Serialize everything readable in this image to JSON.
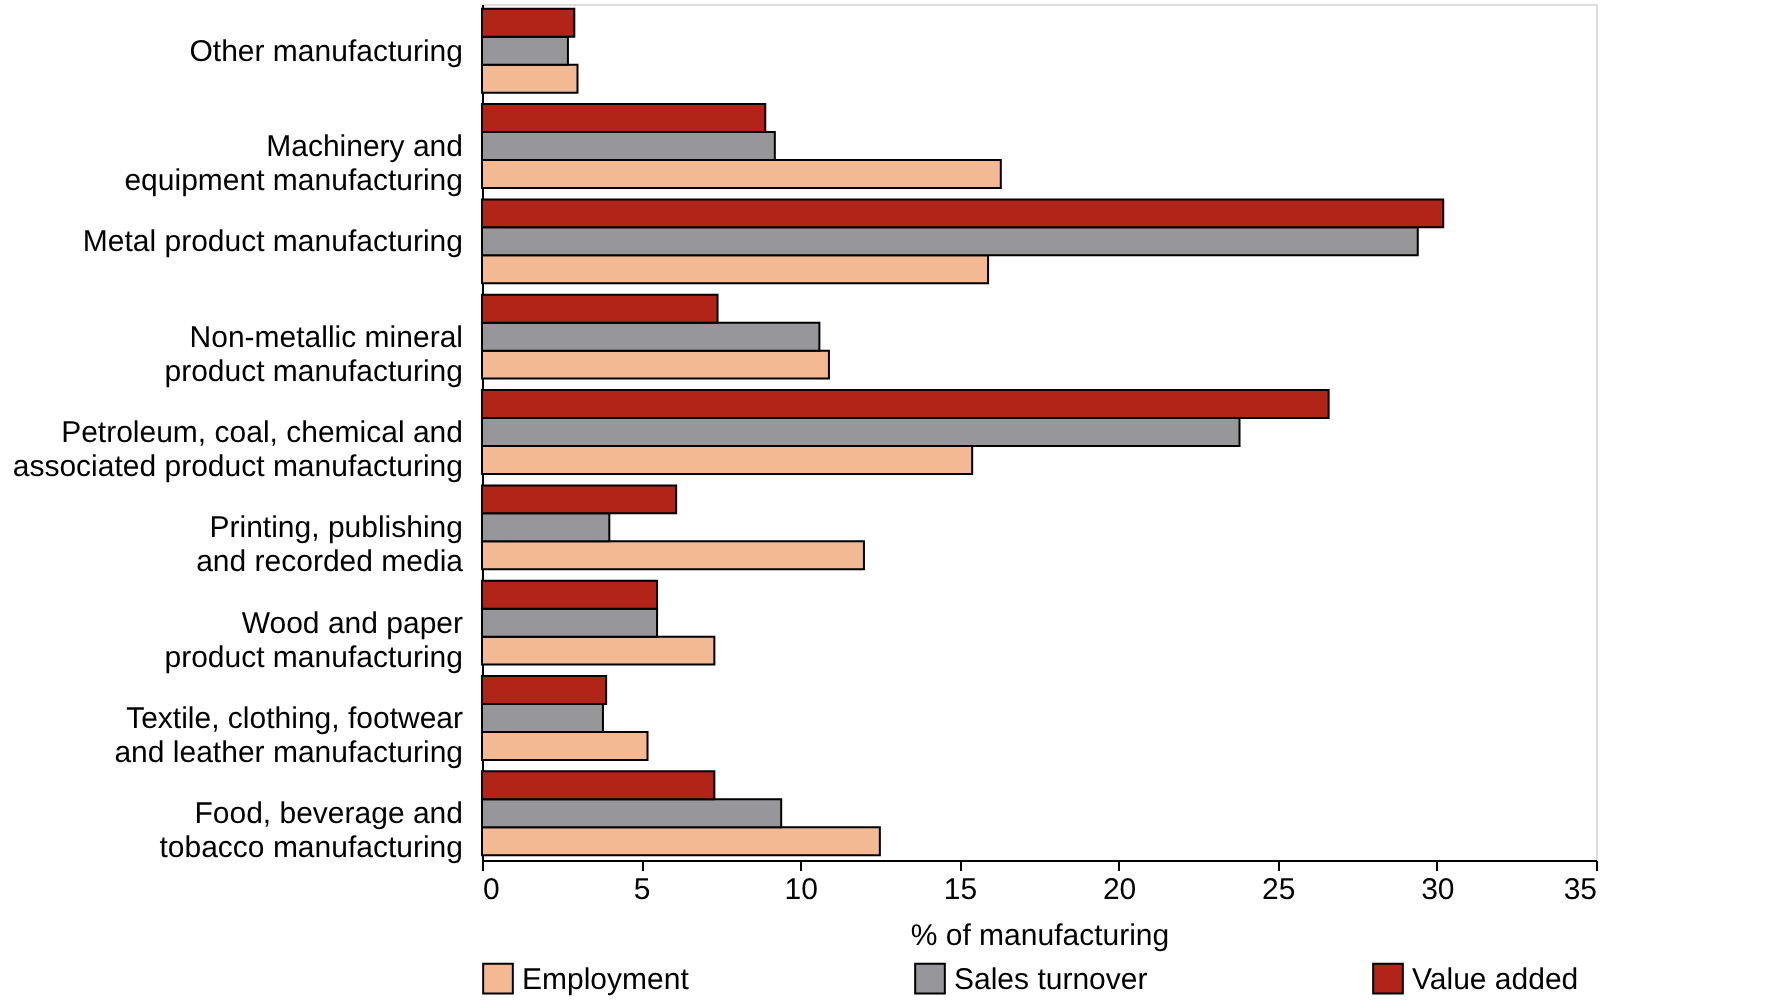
{
  "chart_data": {
    "type": "bar",
    "orientation": "horizontal",
    "xlabel": "% of manufacturing",
    "categories": [
      "Other manufacturing",
      "Machinery and\nequipment manufacturing",
      "Metal product manufacturing",
      "Non-metallic mineral\nproduct manufacturing",
      "Petroleum, coal, chemical and\nassociated product manufacturing",
      "Printing, publishing\nand recorded media",
      "Wood and paper\nproduct manufacturing",
      "Textile, clothing, footwear\nand leather manufacturing",
      "Food, beverage and\ntobacco manufacturing"
    ],
    "series": [
      {
        "name": "Employment",
        "color": "#f2b993",
        "values": [
          3.0,
          16.3,
          15.9,
          10.9,
          15.4,
          12.0,
          7.3,
          5.2,
          12.5
        ]
      },
      {
        "name": "Sales turnover",
        "color": "#96969b",
        "values": [
          2.7,
          9.2,
          29.4,
          10.6,
          23.8,
          4.0,
          5.5,
          3.8,
          9.4
        ]
      },
      {
        "name": "Value added",
        "color": "#b22318",
        "values": [
          2.9,
          8.9,
          30.2,
          7.4,
          26.6,
          6.1,
          5.5,
          3.9,
          7.3
        ]
      }
    ],
    "xlim": [
      0,
      35
    ],
    "xticks": [
      0,
      5,
      10,
      15,
      20,
      25,
      30,
      35
    ],
    "grid": false,
    "legend": "bottom"
  }
}
